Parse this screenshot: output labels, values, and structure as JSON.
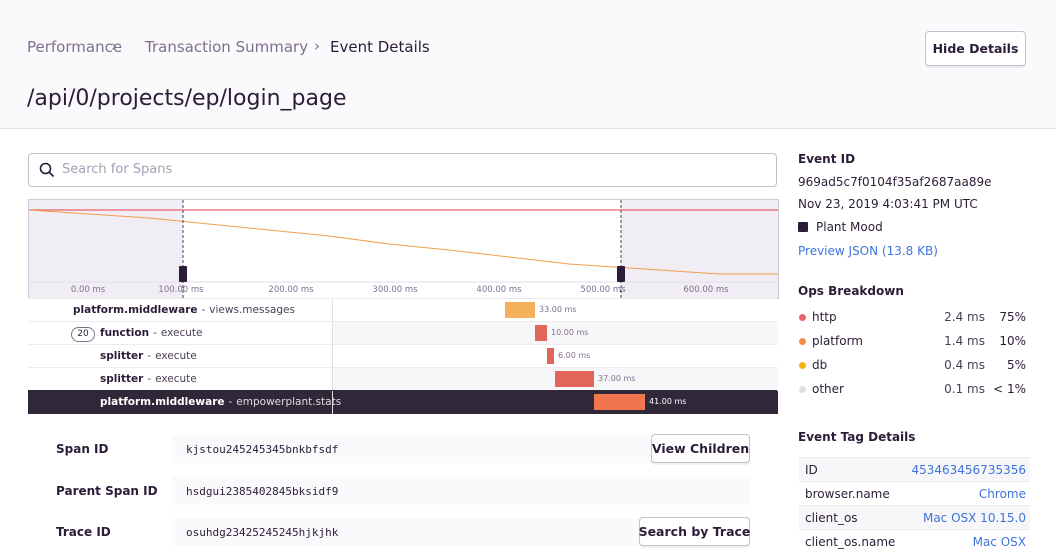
{
  "breadcrumbs": [
    "Performance",
    "Transaction Summary",
    "Event Details"
  ],
  "title": "/api/0/projects/ep/login_page",
  "hide_details": "Hide Details",
  "search_placeholder": "Search for Spans",
  "timeline_ticks": [
    "0.00 ms",
    "100.00 ms",
    "200.00 ms",
    "300.00 ms",
    "400.00 ms",
    "500.00 ms",
    "600.00 ms"
  ],
  "separator": "-",
  "child_count": "20",
  "spans": [
    {
      "op": "platform.middleware",
      "description": "views.messages",
      "duration": "33.00 ms"
    },
    {
      "op": "function",
      "description": "execute",
      "duration": "10.00 ms"
    },
    {
      "op": "splitter",
      "description": "execute",
      "duration": "6.00 ms"
    },
    {
      "op": "splitter",
      "description": "execute",
      "duration": "37.00 ms"
    },
    {
      "op": "platform.middleware",
      "description": "empowerplant.stats",
      "duration": "41.00 ms"
    }
  ],
  "span_details": [
    {
      "label": "Span ID",
      "value": "kjstou245245345bnkbfsdf",
      "button": "View Children"
    },
    {
      "label": "Parent Span ID",
      "value": "hsdgui2385402845bksidf9"
    },
    {
      "label": "Trace ID",
      "value": "osuhdg23425245245hjkjhk",
      "button": "Search by Trace"
    }
  ],
  "sidebar": {
    "event_id_label": "Event ID",
    "event_id": "969ad5c7f0104f35af2687aa89e",
    "date": "Nov 23, 2019 4:03:41 PM UTC",
    "project": "Plant Mood",
    "preview_json": "Preview JSON (13.8 KB)",
    "ops_title": "Ops Breakdown",
    "ops": [
      {
        "name": "http",
        "time": "2.4 ms",
        "percent": "75%",
        "color": "#e9626e"
      },
      {
        "name": "platform",
        "time": "1.4 ms",
        "percent": "10%",
        "color": "#f58c46"
      },
      {
        "name": "db",
        "time": "0.4 ms",
        "percent": "5%",
        "color": "#f2b712"
      },
      {
        "name": "other",
        "time": "0.1 ms",
        "percent": "< 1%",
        "color": "#e2dee6"
      }
    ],
    "tags_title": "Event Tag Details",
    "tags": [
      {
        "key": "ID",
        "value": "453463456735356"
      },
      {
        "key": "browser.name",
        "value": "Chrome"
      },
      {
        "key": "client_os",
        "value": "Mac OSX 10.15.0"
      },
      {
        "key": "client_os.name",
        "value": "Mac OSX"
      }
    ]
  }
}
